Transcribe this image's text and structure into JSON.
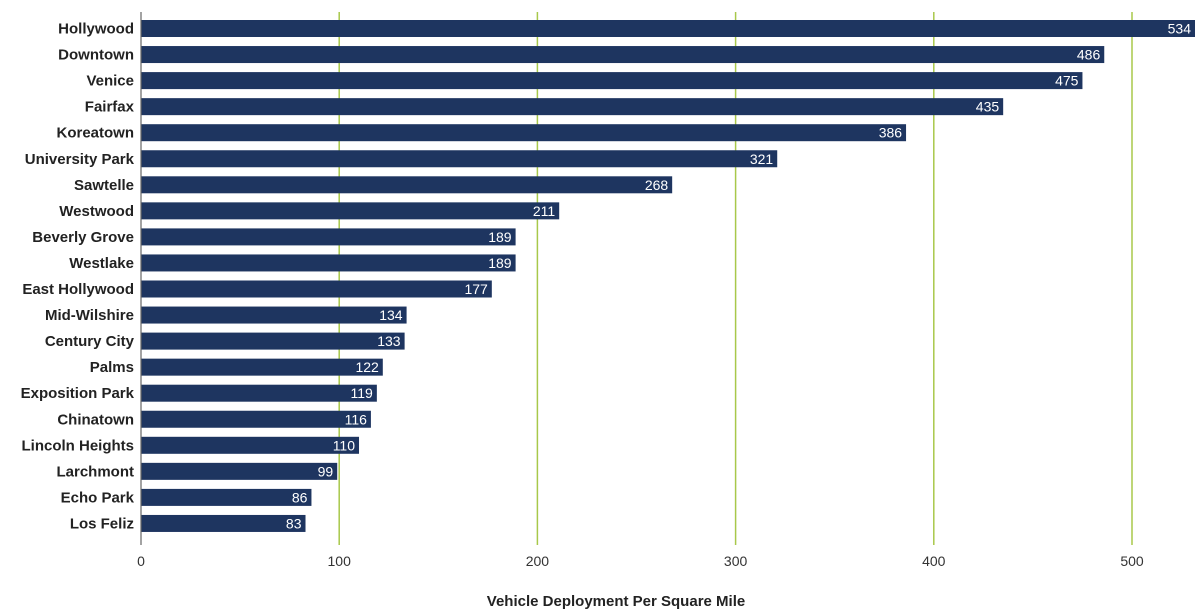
{
  "chart_data": {
    "type": "bar",
    "orientation": "horizontal",
    "categories": [
      "Hollywood",
      "Downtown",
      "Venice",
      "Fairfax",
      "Koreatown",
      "University Park",
      "Sawtelle",
      "Westwood",
      "Beverly Grove",
      "Westlake",
      "East Hollywood",
      "Mid-Wilshire",
      "Century City",
      "Palms",
      "Exposition Park",
      "Chinatown",
      "Lincoln Heights",
      "Larchmont",
      "Echo Park",
      "Los Feliz"
    ],
    "values": [
      534,
      486,
      475,
      435,
      386,
      321,
      268,
      211,
      189,
      189,
      177,
      134,
      133,
      122,
      119,
      116,
      110,
      99,
      86,
      83
    ],
    "xlabel": "Vehicle Deployment Per Square Mile",
    "xlim": [
      0,
      530
    ],
    "xticks": [
      0,
      100,
      200,
      300,
      400,
      500
    ],
    "grid": "vertical",
    "colors": {
      "bar": "#1e3560",
      "grid": "#a8c84a",
      "axis": "#666666"
    }
  }
}
